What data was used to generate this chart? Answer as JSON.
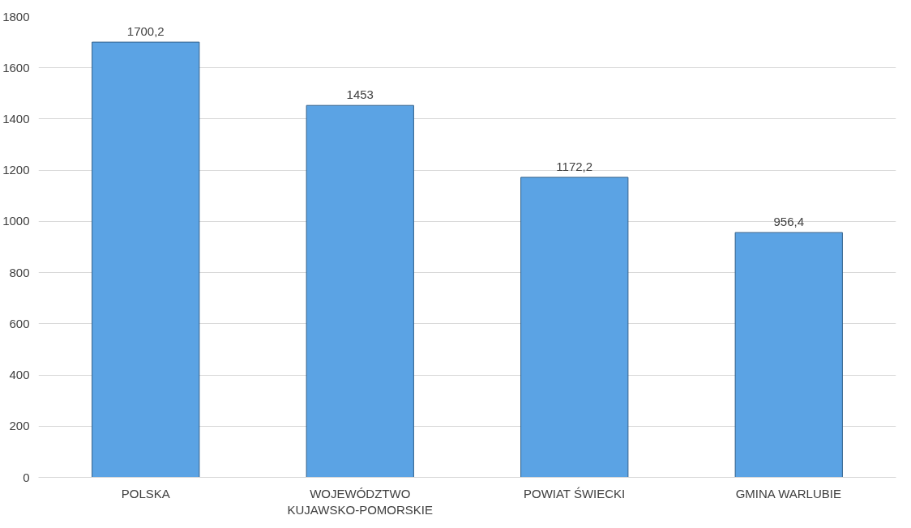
{
  "chart_data": {
    "type": "bar",
    "categories": [
      "POLSKA",
      "WOJEWÓDZTWO KUJAWSKO-POMORSKIE",
      "POWIAT ŚWIECKI",
      "GMINA WARLUBIE"
    ],
    "values": [
      1700.2,
      1453,
      1172.2,
      956.4
    ],
    "value_labels": [
      "1700,2",
      "1453",
      "1172,2",
      "956,4"
    ],
    "color": "#5ba3e4",
    "ylim": [
      0,
      1800
    ],
    "yticks": [
      0,
      200,
      400,
      600,
      800,
      1000,
      1200,
      1400,
      1600,
      1800
    ],
    "grid": "y"
  }
}
